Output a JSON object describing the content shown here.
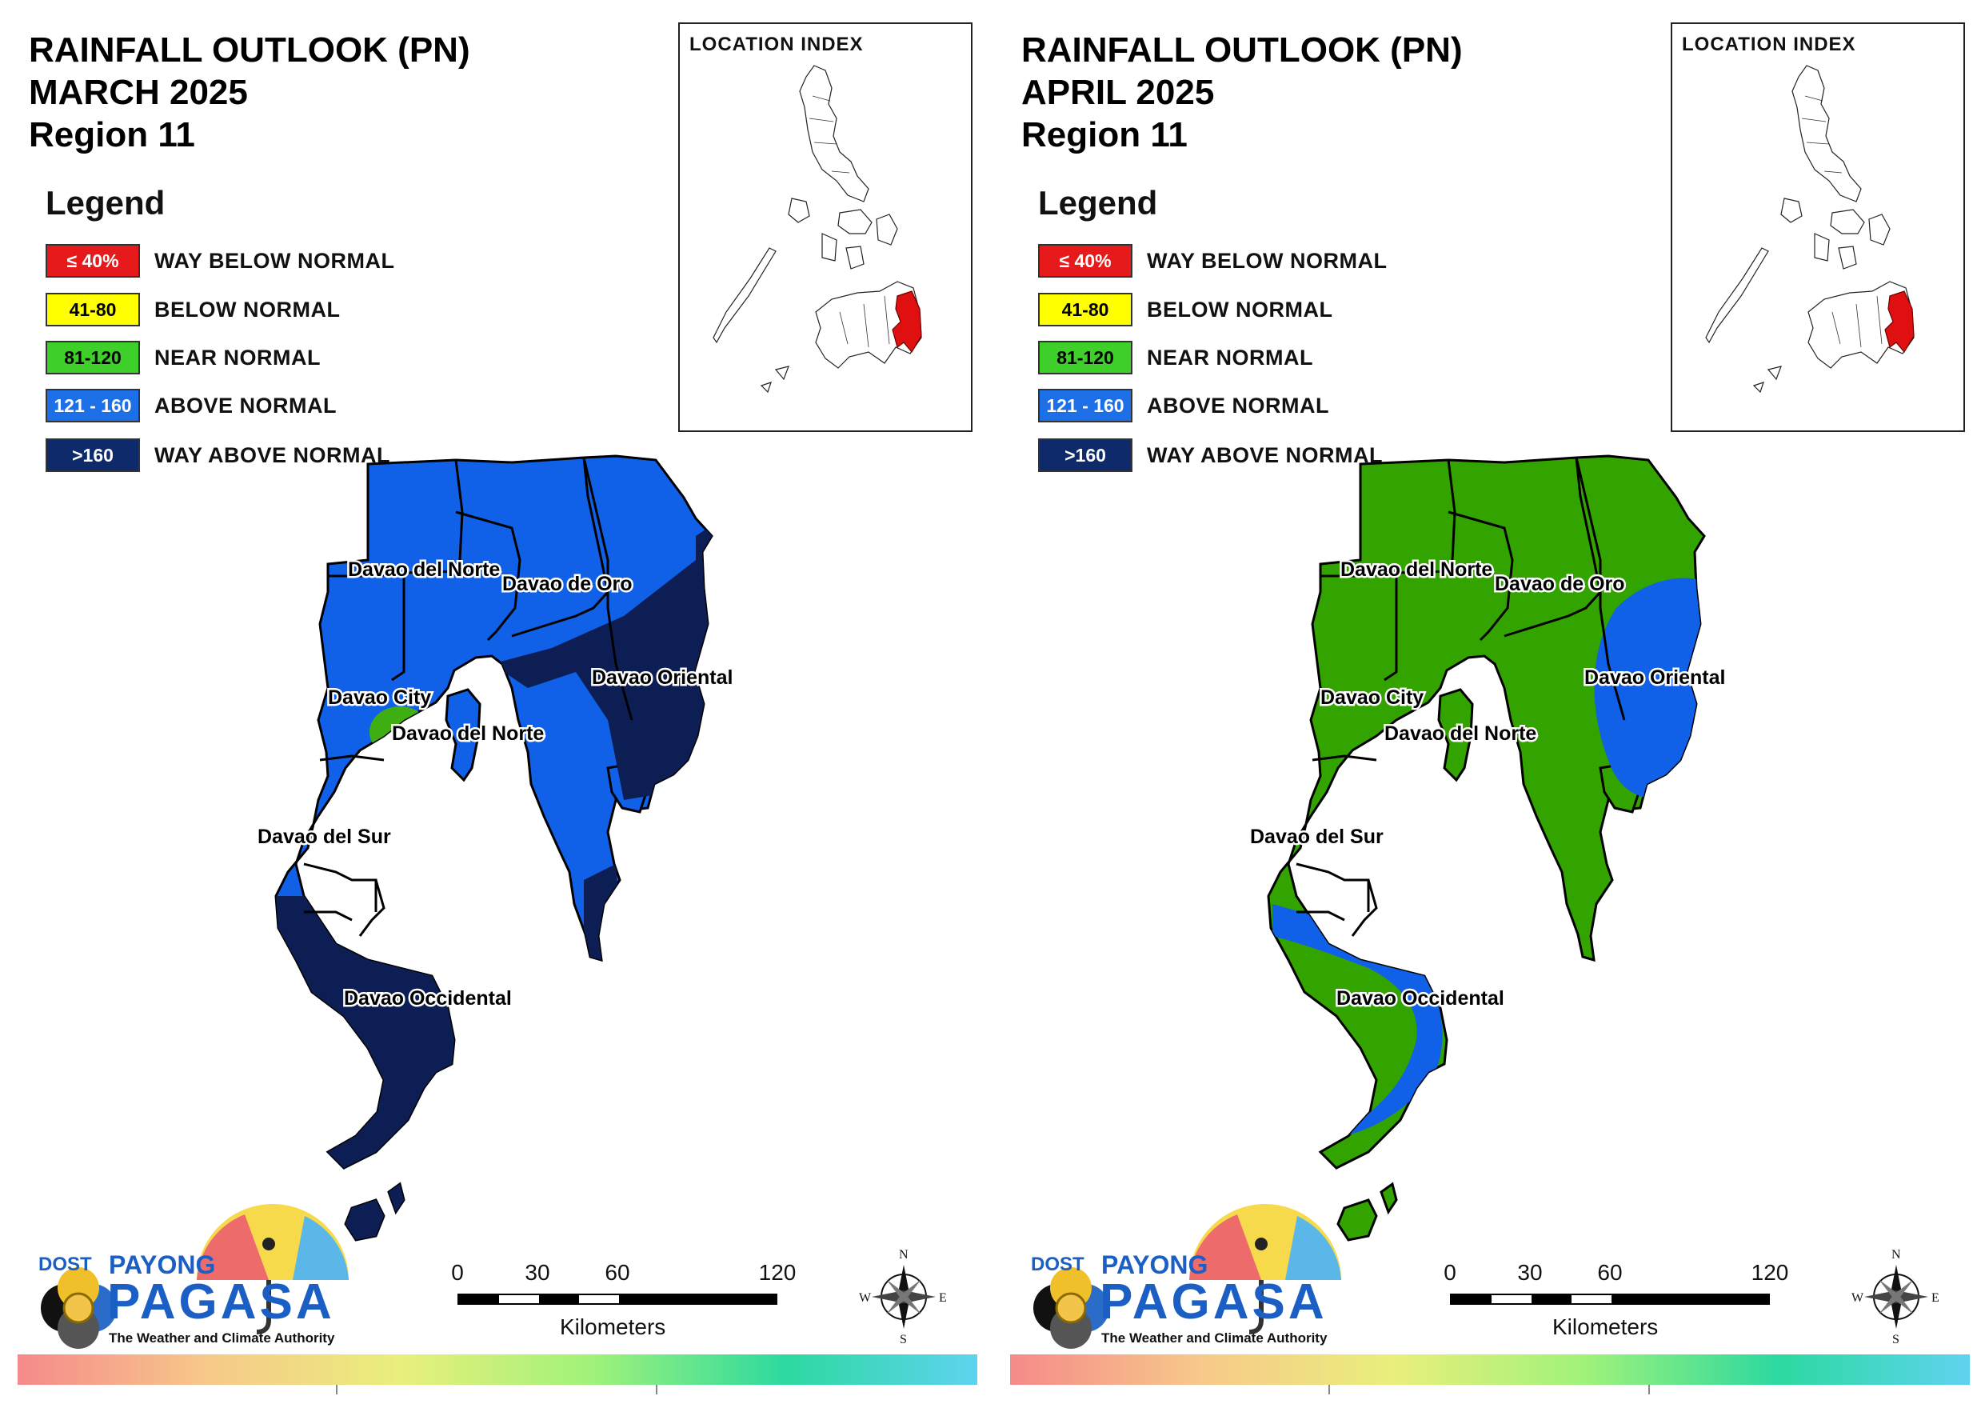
{
  "panels": [
    {
      "title_lines": [
        "RAINFALL OUTLOOK (PN)",
        "MARCH 2025",
        "Region 11"
      ],
      "legend_title": "Legend",
      "legend": [
        {
          "range": "≤ 40%",
          "label": "WAY BELOW NORMAL",
          "color": "#e61a1a",
          "text_color": "#ffffff"
        },
        {
          "range": "41-80",
          "label": "BELOW NORMAL",
          "color": "#ffff00",
          "text_color": "#000000"
        },
        {
          "range": "81-120",
          "label": "NEAR NORMAL",
          "color": "#3fcf2a",
          "text_color": "#000000"
        },
        {
          "range": "121 - 160",
          "label": "ABOVE NORMAL",
          "color": "#1c6fe6",
          "text_color": "#ffffff"
        },
        {
          "range": ">160",
          "label": "WAY ABOVE NORMAL",
          "color": "#0e2a6b",
          "text_color": "#ffffff"
        }
      ],
      "location_index_title": "LOCATION INDEX",
      "provinces": [
        "Davao del Norte",
        "Davao de Oro",
        "Davao Oriental",
        "Davao City",
        "Davao del Norte",
        "Davao del Sur",
        "Davao Occidental"
      ],
      "base_color": "#1160e8",
      "secondary_color": "#0d1e55"
    },
    {
      "title_lines": [
        "RAINFALL OUTLOOK (PN)",
        "APRIL 2025",
        "Region 11"
      ],
      "legend_title": "Legend",
      "legend": [
        {
          "range": "≤ 40%",
          "label": "WAY BELOW NORMAL",
          "color": "#e61a1a",
          "text_color": "#ffffff"
        },
        {
          "range": "41-80",
          "label": "BELOW NORMAL",
          "color": "#ffff00",
          "text_color": "#000000"
        },
        {
          "range": "81-120",
          "label": "NEAR NORMAL",
          "color": "#3fcf2a",
          "text_color": "#000000"
        },
        {
          "range": "121 - 160",
          "label": "ABOVE NORMAL",
          "color": "#1c6fe6",
          "text_color": "#ffffff"
        },
        {
          "range": ">160",
          "label": "WAY ABOVE NORMAL",
          "color": "#0e2a6b",
          "text_color": "#ffffff"
        }
      ],
      "location_index_title": "LOCATION INDEX",
      "provinces": [
        "Davao del Norte",
        "Davao de Oro",
        "Davao Oriental",
        "Davao City",
        "Davao del Norte",
        "Davao del Sur",
        "Davao Occidental"
      ],
      "base_color": "#33a300",
      "secondary_color": "#1160e8"
    }
  ],
  "branding": {
    "dost": "DOST",
    "payong": "PAYONG",
    "pagasa": "PAGASA",
    "tagline": "The Weather and Climate Authority"
  },
  "scale": {
    "ticks": [
      "0",
      "30",
      "60",
      "120"
    ],
    "unit": "Kilometers"
  },
  "compass": {
    "n": "N",
    "s": "S",
    "e": "E",
    "w": "W"
  },
  "highlight_color": "#e01010"
}
